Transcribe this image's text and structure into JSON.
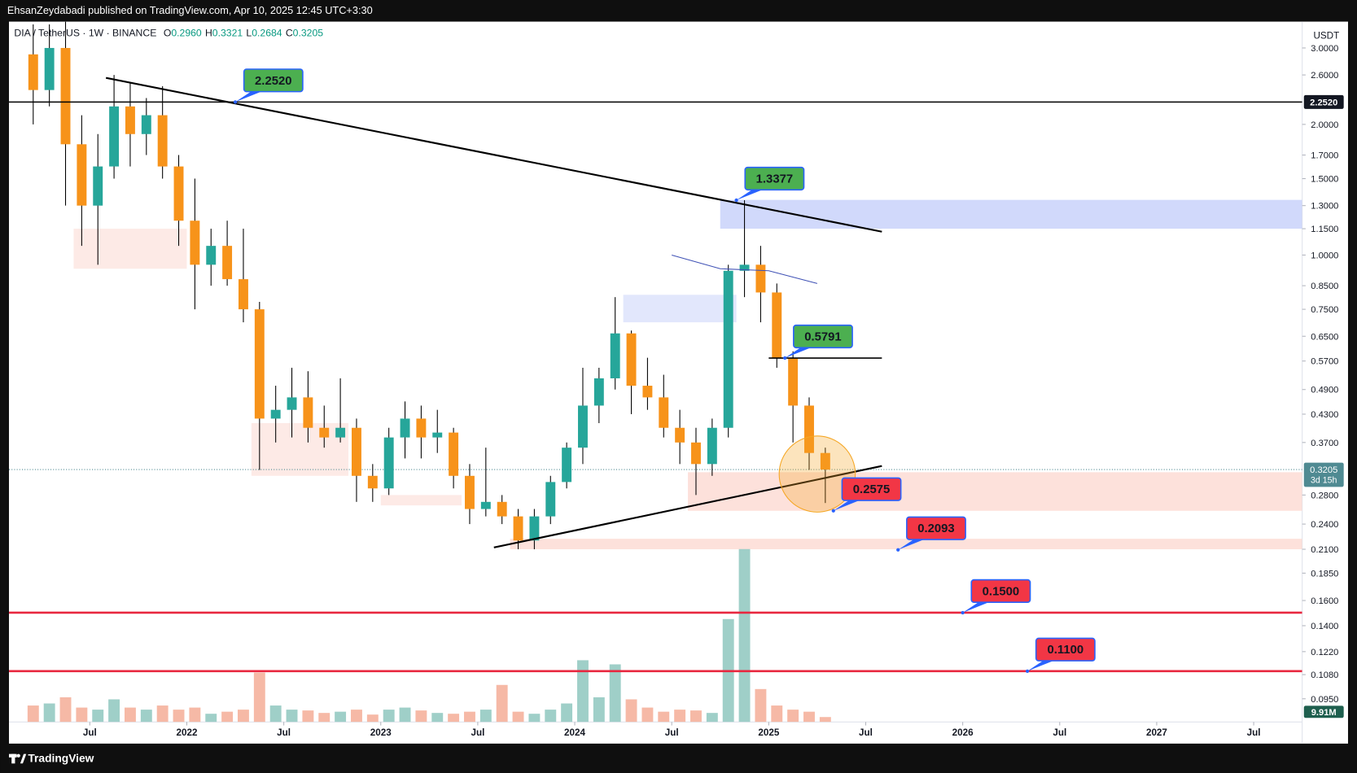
{
  "header": {
    "text": "EhsanZeydabadi published on TradingView.com, Apr 10, 2025 12:45 UTC+3:30"
  },
  "footer": {
    "brand": "TradingView"
  },
  "chart_data": {
    "type": "candlestick",
    "legend": {
      "symbol": "DIA / TetherUS · 1W · BINANCE",
      "ohlc": [
        {
          "key": "O",
          "value": 0.296,
          "label": "0.2960"
        },
        {
          "key": "H",
          "value": 0.3321,
          "label": "0.3321"
        },
        {
          "key": "L",
          "value": 0.2684,
          "label": "0.2684"
        },
        {
          "key": "C",
          "value": 0.3205,
          "label": "0.3205"
        }
      ]
    },
    "currency": "USDT",
    "log_scale": true,
    "up_color": "#26a69a",
    "down_color": "#f7931a",
    "volume_up_color": "#9fcfc8",
    "volume_down_color": "#f6b9a6",
    "x": [
      "2021-03",
      "2021-04",
      "2021-05",
      "2021-06",
      "2021-07",
      "2021-08",
      "2021-09",
      "2021-10",
      "2021-11",
      "2021-12",
      "2022-01",
      "2022-02",
      "2022-03",
      "2022-04",
      "2022-05",
      "2022-06",
      "2022-07",
      "2022-08",
      "2022-09",
      "2022-10",
      "2022-11",
      "2022-12",
      "2023-01",
      "2023-02",
      "2023-03",
      "2023-04",
      "2023-05",
      "2023-06",
      "2023-07",
      "2023-08",
      "2023-09",
      "2023-10",
      "2023-11",
      "2023-12",
      "2024-01",
      "2024-02",
      "2024-03",
      "2024-04",
      "2024-05",
      "2024-06",
      "2024-07",
      "2024-08",
      "2024-09",
      "2024-10",
      "2024-11",
      "2024-12",
      "2025-01",
      "2025-02",
      "2025-03",
      "2025-04"
    ],
    "open": [
      2.9,
      2.4,
      3.0,
      1.8,
      1.3,
      1.6,
      2.2,
      1.9,
      2.1,
      1.6,
      1.2,
      0.95,
      1.05,
      0.88,
      0.75,
      0.42,
      0.44,
      0.47,
      0.4,
      0.38,
      0.4,
      0.31,
      0.29,
      0.38,
      0.42,
      0.38,
      0.39,
      0.31,
      0.26,
      0.27,
      0.25,
      0.22,
      0.25,
      0.3,
      0.36,
      0.45,
      0.52,
      0.66,
      0.5,
      0.47,
      0.4,
      0.37,
      0.33,
      0.4,
      0.92,
      0.95,
      0.82,
      0.58,
      0.45,
      0.35
    ],
    "high": [
      3.4,
      3.4,
      3.45,
      2.1,
      1.9,
      2.6,
      2.5,
      2.3,
      2.45,
      1.7,
      1.5,
      1.15,
      1.2,
      1.15,
      0.78,
      0.5,
      0.55,
      0.54,
      0.45,
      0.52,
      0.42,
      0.33,
      0.4,
      0.46,
      0.45,
      0.44,
      0.4,
      0.33,
      0.36,
      0.28,
      0.26,
      0.26,
      0.31,
      0.37,
      0.55,
      0.55,
      0.8,
      0.67,
      0.58,
      0.53,
      0.44,
      0.4,
      0.42,
      0.95,
      1.3377,
      1.05,
      0.86,
      0.6,
      0.47,
      0.36
    ],
    "low": [
      2.0,
      2.2,
      1.3,
      1.05,
      0.95,
      1.5,
      1.6,
      1.7,
      1.5,
      1.05,
      0.75,
      0.85,
      0.85,
      0.7,
      0.32,
      0.37,
      0.38,
      0.37,
      0.36,
      0.37,
      0.27,
      0.27,
      0.28,
      0.34,
      0.34,
      0.35,
      0.29,
      0.24,
      0.25,
      0.24,
      0.21,
      0.21,
      0.24,
      0.29,
      0.33,
      0.41,
      0.49,
      0.43,
      0.44,
      0.38,
      0.33,
      0.28,
      0.31,
      0.38,
      0.8,
      0.7,
      0.55,
      0.37,
      0.32,
      0.2684
    ],
    "close": [
      2.4,
      3.0,
      1.8,
      1.3,
      1.6,
      2.2,
      1.9,
      2.1,
      1.6,
      1.2,
      0.95,
      1.05,
      0.88,
      0.75,
      0.42,
      0.44,
      0.47,
      0.4,
      0.38,
      0.4,
      0.31,
      0.29,
      0.38,
      0.42,
      0.38,
      0.39,
      0.31,
      0.26,
      0.27,
      0.25,
      0.22,
      0.25,
      0.3,
      0.36,
      0.45,
      0.52,
      0.66,
      0.5,
      0.47,
      0.4,
      0.37,
      0.33,
      0.4,
      0.92,
      0.95,
      0.82,
      0.58,
      0.45,
      0.35,
      0.3205
    ],
    "volume": [
      40,
      45,
      60,
      35,
      30,
      55,
      35,
      30,
      40,
      30,
      35,
      20,
      25,
      30,
      120,
      40,
      30,
      28,
      22,
      25,
      30,
      18,
      30,
      35,
      28,
      22,
      20,
      25,
      30,
      90,
      25,
      20,
      30,
      45,
      150,
      60,
      140,
      55,
      35,
      25,
      30,
      28,
      22,
      250,
      420,
      80,
      40,
      30,
      25,
      12
    ],
    "volume_last": {
      "value": 9.91,
      "label": "9.91M"
    },
    "last_price": {
      "value": 0.3205,
      "label": "0.3205",
      "countdown": "3d 15h",
      "color": "#4f8a92"
    },
    "xlim": [
      "2021-02",
      "2027-10"
    ],
    "ylim": [
      0.084,
      3.45
    ],
    "yticks": [
      {
        "value": 3,
        "label": "3.0000"
      },
      {
        "value": 2.6,
        "label": "2.6000"
      },
      {
        "value": 2,
        "label": "2.0000"
      },
      {
        "value": 1.7,
        "label": "1.7000"
      },
      {
        "value": 1.5,
        "label": "1.5000"
      },
      {
        "value": 1.3,
        "label": "1.3000"
      },
      {
        "value": 1.15,
        "label": "1.1500"
      },
      {
        "value": 1,
        "label": "1.0000"
      },
      {
        "value": 0.85,
        "label": "0.8500"
      },
      {
        "value": 0.75,
        "label": "0.7500"
      },
      {
        "value": 0.65,
        "label": "0.6500"
      },
      {
        "value": 0.57,
        "label": "0.5700"
      },
      {
        "value": 0.49,
        "label": "0.4900"
      },
      {
        "value": 0.43,
        "label": "0.4300"
      },
      {
        "value": 0.37,
        "label": "0.3700"
      },
      {
        "value": 0.28,
        "label": "0.2800"
      },
      {
        "value": 0.24,
        "label": "0.2400"
      },
      {
        "value": 0.21,
        "label": "0.2100"
      },
      {
        "value": 0.185,
        "label": "0.1850"
      },
      {
        "value": 0.16,
        "label": "0.1600"
      },
      {
        "value": 0.14,
        "label": "0.1400"
      },
      {
        "value": 0.122,
        "label": "0.1220"
      },
      {
        "value": 0.108,
        "label": "0.1080"
      },
      {
        "value": 0.095,
        "label": "0.0950"
      }
    ],
    "xticks": [
      {
        "value": "2021-07",
        "label": "Jul"
      },
      {
        "value": "2022-01",
        "label": "2022"
      },
      {
        "value": "2022-07",
        "label": "Jul"
      },
      {
        "value": "2023-01",
        "label": "2023"
      },
      {
        "value": "2023-07",
        "label": "Jul"
      },
      {
        "value": "2024-01",
        "label": "2024"
      },
      {
        "value": "2024-07",
        "label": "Jul"
      },
      {
        "value": "2025-01",
        "label": "2025"
      },
      {
        "value": "2025-07",
        "label": "Jul"
      },
      {
        "value": "2026-01",
        "label": "2026"
      },
      {
        "value": "2026-07",
        "label": "Jul"
      },
      {
        "value": "2027-01",
        "label": "2027"
      },
      {
        "value": "2027-07",
        "label": "Jul"
      }
    ],
    "annotations": [
      {
        "value": 2.252,
        "label": "2.2520",
        "x": "2022-04",
        "color": "#4caf50",
        "line_color": "#000000",
        "line_from": "2021-02",
        "line_to": "2027-10",
        "axis_tag": true
      },
      {
        "value": 1.3377,
        "label": "1.3377",
        "x": "2024-11",
        "color": "#4caf50"
      },
      {
        "value": 0.5791,
        "label": "0.5791",
        "x": "2025-02",
        "color": "#4caf50",
        "line_color": "#000000",
        "line_from": "2025-01",
        "line_to": "2025-08"
      },
      {
        "value": 0.2575,
        "label": "0.2575",
        "x": "2025-05",
        "color": "#f23645"
      },
      {
        "value": 0.2093,
        "label": "0.2093",
        "x": "2025-09",
        "color": "#f23645"
      },
      {
        "value": 0.15,
        "label": "0.1500",
        "x": "2026-01",
        "color": "#f23645",
        "line_color": "#e8273f",
        "line_from": "2021-02",
        "line_to": "2027-10"
      },
      {
        "value": 0.11,
        "label": "0.1100",
        "x": "2026-05",
        "color": "#f23645",
        "line_color": "#e8273f",
        "line_from": "2021-02",
        "line_to": "2027-10"
      }
    ],
    "zones": [
      {
        "from": "2024-10",
        "to": "2027-10",
        "low": 1.15,
        "high": 1.34,
        "color": "#c9d2fa"
      },
      {
        "from": "2024-04",
        "to": "2024-11",
        "low": 0.7,
        "high": 0.81,
        "color": "#dde3fb"
      },
      {
        "from": "2024-08",
        "to": "2027-10",
        "low": 0.2575,
        "high": 0.316,
        "color": "#fddcd5"
      },
      {
        "from": "2023-09",
        "to": "2027-10",
        "low": 0.21,
        "high": 0.222,
        "color": "#fddcd5"
      },
      {
        "from": "2021-06",
        "to": "2022-01",
        "low": 0.93,
        "high": 1.15,
        "color": "#fde6e2"
      },
      {
        "from": "2022-05",
        "to": "2022-11",
        "low": 0.31,
        "high": 0.41,
        "color": "#fde6e2"
      },
      {
        "from": "2023-01",
        "to": "2023-06",
        "low": 0.265,
        "high": 0.28,
        "color": "#fde6e2"
      }
    ],
    "trendlines": [
      {
        "x": [
          "2021-08",
          "2025-08"
        ],
        "y": [
          2.56,
          1.132
        ],
        "color": "#000000"
      },
      {
        "x": [
          "2023-08",
          "2025-08"
        ],
        "y": [
          0.212,
          0.3266
        ],
        "color": "#000000"
      },
      {
        "x": [
          "2024-07",
          "2024-10",
          "2025-01",
          "2025-04"
        ],
        "y": [
          1.0,
          0.93,
          0.92,
          0.86
        ],
        "color": "#3f51b5"
      }
    ],
    "highlight": {
      "x": "2025-04",
      "y": 0.313,
      "color": "#f5a623"
    }
  }
}
